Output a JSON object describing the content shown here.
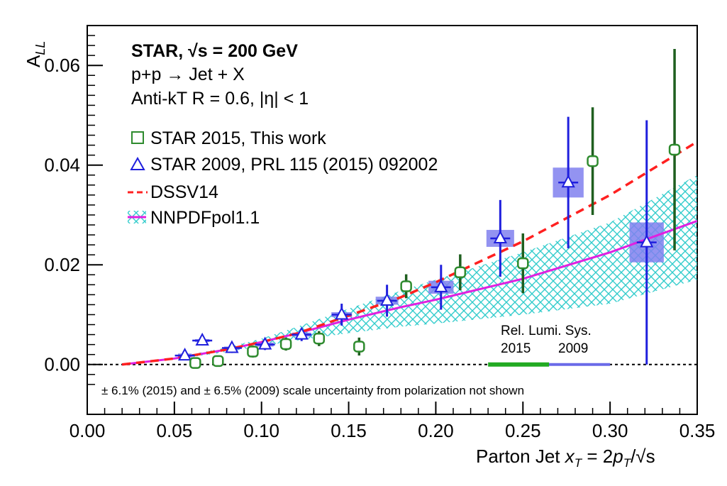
{
  "chart_data": {
    "type": "scatter",
    "title_lines": [
      "STAR, √s = 200 GeV",
      "p+p → Jet + X",
      "Anti-kT R = 0.6, |η| < 1"
    ],
    "xlabel": "Parton Jet x_T = 2p_T/√s",
    "ylabel": "A_LL",
    "xlim": [
      0.0,
      0.35
    ],
    "ylim": [
      -0.01,
      0.068
    ],
    "x_ticks": [
      0.0,
      0.05,
      0.1,
      0.15,
      0.2,
      0.25,
      0.3,
      0.35
    ],
    "x_tick_labels": [
      "0.00",
      "0.05",
      "0.10",
      "0.15",
      "0.20",
      "0.25",
      "0.30",
      "0.35"
    ],
    "y_ticks": [
      0.0,
      0.02,
      0.04,
      0.06
    ],
    "y_tick_labels": [
      "0.00",
      "0.02",
      "0.04",
      "0.06"
    ],
    "legend_position": "upper-left",
    "series": [
      {
        "name": "STAR 2015, This work",
        "marker": "open-square",
        "color": "#2e8b2e",
        "points": [
          {
            "x": 0.062,
            "y": 0.0003,
            "err": 0.001
          },
          {
            "x": 0.075,
            "y": 0.0007,
            "err": 0.0011
          },
          {
            "x": 0.095,
            "y": 0.0026,
            "err": 0.0012
          },
          {
            "x": 0.114,
            "y": 0.0041,
            "err": 0.0013
          },
          {
            "x": 0.133,
            "y": 0.0052,
            "err": 0.0015
          },
          {
            "x": 0.156,
            "y": 0.0036,
            "err": 0.0018
          },
          {
            "x": 0.183,
            "y": 0.0157,
            "err": 0.0024
          },
          {
            "x": 0.214,
            "y": 0.0185,
            "err": 0.0036
          },
          {
            "x": 0.25,
            "y": 0.0203,
            "err": 0.006
          },
          {
            "x": 0.29,
            "y": 0.0408,
            "err": 0.0108
          },
          {
            "x": 0.337,
            "y": 0.0431,
            "err": 0.0202
          }
        ]
      },
      {
        "name": "STAR 2009, PRL 115 (2015) 092002",
        "marker": "open-triangle",
        "color": "#1f1fdd",
        "points": [
          {
            "x": 0.056,
            "y": 0.0018,
            "err": 0.0009
          },
          {
            "x": 0.066,
            "y": 0.0048,
            "err": 0.001
          },
          {
            "x": 0.083,
            "y": 0.0033,
            "err": 0.001
          },
          {
            "x": 0.102,
            "y": 0.004,
            "err": 0.0011
          },
          {
            "x": 0.123,
            "y": 0.006,
            "err": 0.0013
          },
          {
            "x": 0.146,
            "y": 0.01,
            "err": 0.0022
          },
          {
            "x": 0.172,
            "y": 0.0128,
            "err": 0.0032
          },
          {
            "x": 0.203,
            "y": 0.0155,
            "err": 0.0045
          },
          {
            "x": 0.237,
            "y": 0.0253,
            "err": 0.0077
          },
          {
            "x": 0.276,
            "y": 0.0365,
            "err": 0.0132
          },
          {
            "x": 0.321,
            "y": 0.0245,
            "err": 0.0245
          }
        ]
      },
      {
        "name": "DSSV14",
        "style": "dashed-line",
        "color": "#ff2020",
        "x": [
          0.02,
          0.05,
          0.08,
          0.1,
          0.12,
          0.15,
          0.18,
          0.2,
          0.25,
          0.3,
          0.35
        ],
        "y": [
          0.0,
          0.0012,
          0.003,
          0.0045,
          0.0062,
          0.0098,
          0.0135,
          0.0165,
          0.0247,
          0.034,
          0.0447
        ]
      },
      {
        "name": "NNPDFpol1.1",
        "style": "solid-line-with-band",
        "color": "#e020e0",
        "band_color": "#33cccc",
        "x": [
          0.02,
          0.05,
          0.08,
          0.1,
          0.12,
          0.15,
          0.18,
          0.2,
          0.25,
          0.3,
          0.35
        ],
        "y": [
          0.0,
          0.0012,
          0.003,
          0.0045,
          0.0062,
          0.009,
          0.0115,
          0.013,
          0.0172,
          0.0225,
          0.0288
        ],
        "band_lower": [
          0.0,
          0.001,
          0.0025,
          0.0037,
          0.0048,
          0.0063,
          0.0076,
          0.0082,
          0.01,
          0.0122,
          0.017
        ],
        "band_upper": [
          0.0,
          0.0014,
          0.0034,
          0.0052,
          0.0075,
          0.0112,
          0.0148,
          0.017,
          0.0225,
          0.0285,
          0.038
        ]
      }
    ],
    "systematic_boxes_2009": [
      {
        "x": 0.056,
        "y": 0.0018,
        "dy": 0.0004
      },
      {
        "x": 0.066,
        "y": 0.0048,
        "dy": 0.0003
      },
      {
        "x": 0.083,
        "y": 0.0033,
        "dy": 0.0003
      },
      {
        "x": 0.102,
        "y": 0.004,
        "dy": 0.0004
      },
      {
        "x": 0.123,
        "y": 0.006,
        "dy": 0.0004
      },
      {
        "x": 0.146,
        "y": 0.01,
        "dy": 0.0005
      },
      {
        "x": 0.172,
        "y": 0.0128,
        "dy": 0.0008
      },
      {
        "x": 0.203,
        "y": 0.0155,
        "dy": 0.0013
      },
      {
        "x": 0.237,
        "y": 0.0253,
        "dy": 0.0017
      },
      {
        "x": 0.276,
        "y": 0.0365,
        "dy": 0.003
      },
      {
        "x": 0.321,
        "y": 0.0245,
        "dy": 0.004
      }
    ],
    "relative_luminosity": {
      "title": "Rel. Lumi. Sys.",
      "label_2015": "2015",
      "label_2009": "2009",
      "x_2015": [
        0.23,
        0.265
      ],
      "x_2009": [
        0.265,
        0.3
      ],
      "color_2015": "#22aa22",
      "color_2009": "#6a6ae8"
    },
    "zero_line": {
      "style": "dotted"
    },
    "footnote": "± 6.1% (2015) and ± 6.5% (2009) scale uncertainty from polarization not shown"
  }
}
